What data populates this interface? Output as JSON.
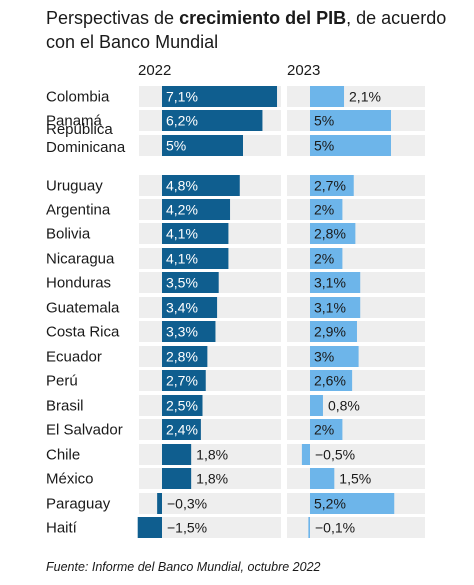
{
  "title": {
    "prefix": "Perspectivas de ",
    "bold": "crecimiento del PIB",
    "suffix": ", de acuerdo con el Banco Mundial"
  },
  "source": "Fuente: Informe del Banco Mundial, octubre 2022",
  "colors": {
    "y2022": "#0f5e8f",
    "y2023": "#6db5ea",
    "track": "#eeeeee",
    "label_on_dark": "#ffffff",
    "label_default": "#1a1a1a"
  },
  "chart_data": {
    "type": "bar",
    "orientation": "horizontal",
    "grid": false,
    "legend": "none",
    "categories": [
      "Colombia",
      "Panamá",
      "República\nDominicana",
      "Uruguay",
      "Argentina",
      "Bolivia",
      "Nicaragua",
      "Honduras",
      "Guatemala",
      "Costa Rica",
      "Ecuador",
      "Perú",
      "Brasil",
      "El Salvador",
      "Chile",
      "México",
      "Paraguay",
      "Haití"
    ],
    "series": [
      {
        "name": "2022",
        "values": [
          7.1,
          6.2,
          5,
          4.8,
          4.2,
          4.1,
          4.1,
          3.5,
          3.4,
          3.3,
          2.8,
          2.7,
          2.5,
          2.4,
          1.8,
          1.8,
          -0.3,
          -1.5
        ],
        "labels": [
          "7,1%",
          "6,2%",
          "5%",
          "4,8%",
          "4,2%",
          "4,1%",
          "4,1%",
          "3,5%",
          "3,4%",
          "3,3%",
          "2,8%",
          "2,7%",
          "2,5%",
          "2,4%",
          "1,8%",
          "1,8%",
          "−0,3%",
          "−1,5%"
        ]
      },
      {
        "name": "2023",
        "values": [
          2.1,
          5,
          5,
          2.7,
          2,
          2.8,
          2,
          3.1,
          3.1,
          2.9,
          3,
          2.6,
          0.8,
          2,
          -0.5,
          1.5,
          5.2,
          -0.1
        ],
        "labels": [
          "2,1%",
          "5%",
          "5%",
          "2,7%",
          "2%",
          "2,8%",
          "2%",
          "3,1%",
          "3,1%",
          "2,9%",
          "3%",
          "2,6%",
          "0,8%",
          "2%",
          "−0,5%",
          "1,5%",
          "5,2%",
          "−0,1%"
        ]
      }
    ],
    "xlim": [
      -1.5,
      7.1
    ]
  }
}
